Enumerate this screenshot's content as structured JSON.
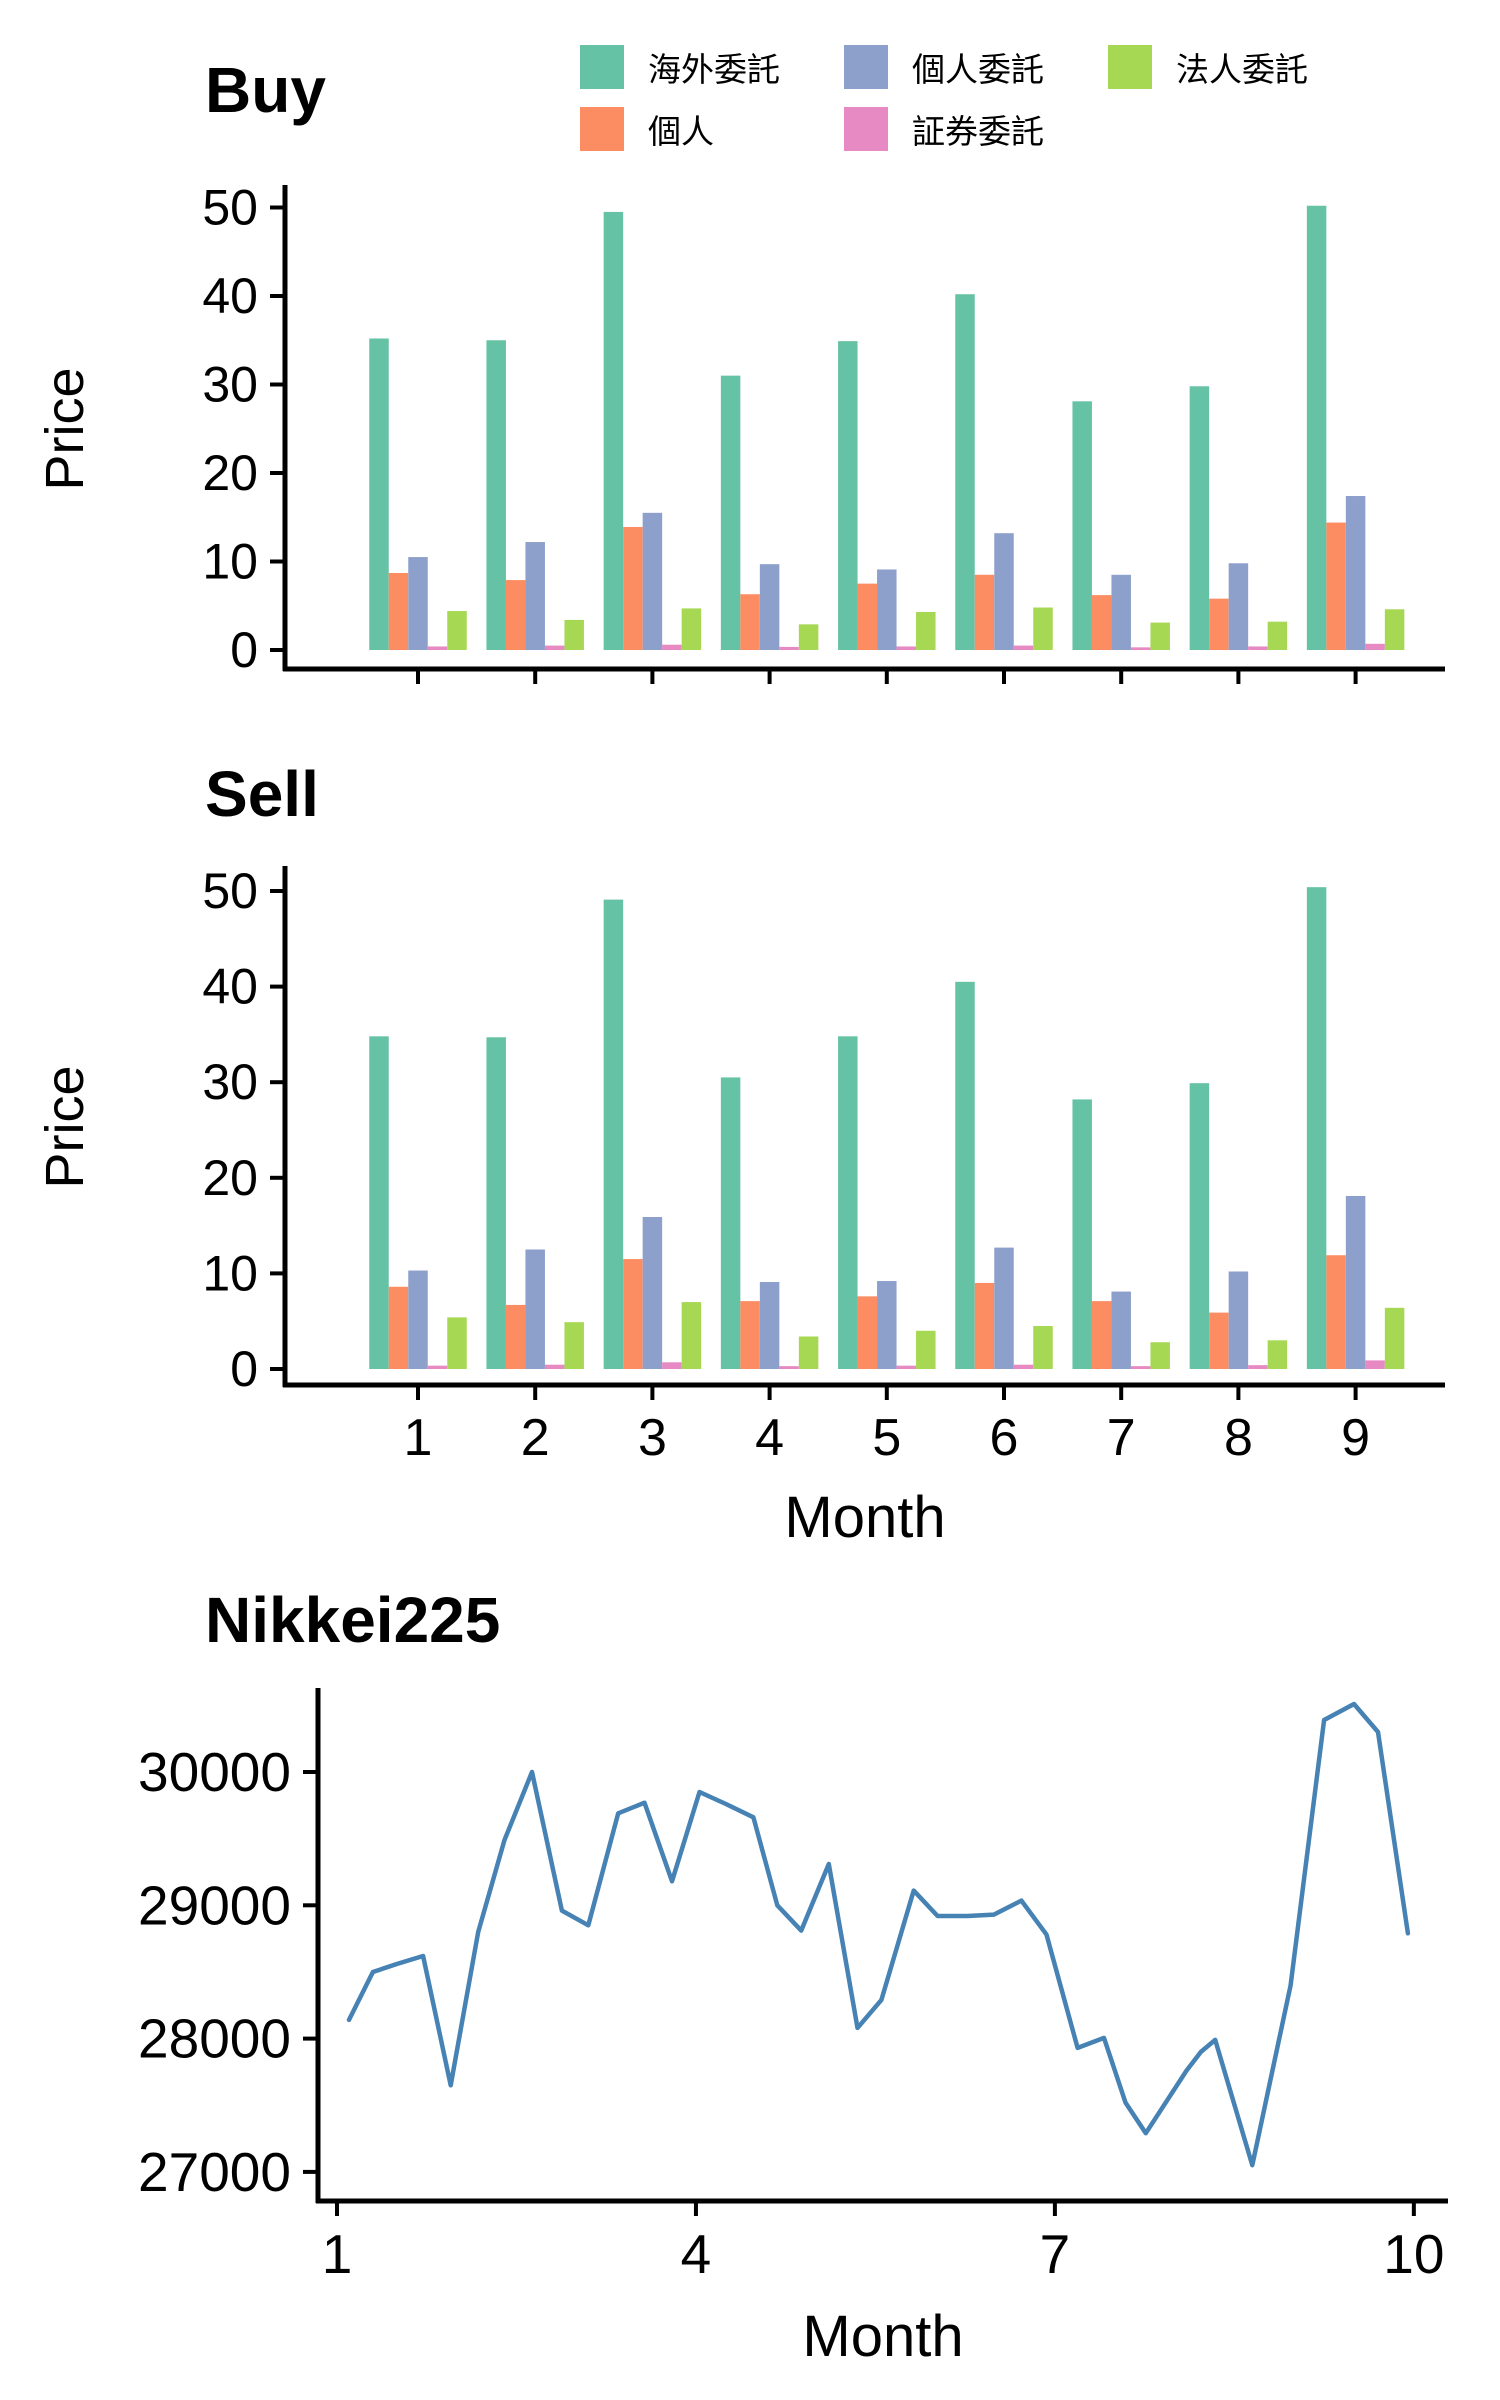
{
  "legend": {
    "items": [
      {
        "label": "海外委託",
        "color": "#66C2A5"
      },
      {
        "label": "個人",
        "color": "#FC8D62"
      },
      {
        "label": "個人委託",
        "color": "#8DA0CB"
      },
      {
        "label": "証券委託",
        "color": "#E78AC3"
      },
      {
        "label": "法人委託",
        "color": "#A6D854"
      }
    ]
  },
  "chart_data": [
    {
      "id": "buy",
      "type": "bar",
      "title": "Buy",
      "ylabel": "Price",
      "xlabel": "",
      "show_x_tick_labels": false,
      "categories": [
        "1",
        "2",
        "3",
        "4",
        "5",
        "6",
        "7",
        "8",
        "9"
      ],
      "yticks": [
        0,
        10,
        20,
        30,
        40,
        50
      ],
      "ylim": [
        0,
        52.5
      ],
      "grid": "off",
      "series": [
        {
          "name": "海外委託",
          "color": "#66C2A5",
          "values": [
            35.2,
            35.0,
            49.5,
            31.0,
            34.9,
            40.2,
            28.1,
            29.8,
            50.2
          ]
        },
        {
          "name": "個人",
          "color": "#FC8D62",
          "values": [
            8.7,
            7.9,
            13.9,
            6.3,
            7.5,
            8.5,
            6.2,
            5.8,
            14.4
          ]
        },
        {
          "name": "個人委託",
          "color": "#8DA0CB",
          "values": [
            10.5,
            12.2,
            15.5,
            9.7,
            9.1,
            13.2,
            8.5,
            9.8,
            17.4
          ]
        },
        {
          "name": "証券委託",
          "color": "#E78AC3",
          "values": [
            0.4,
            0.5,
            0.6,
            0.35,
            0.4,
            0.5,
            0.3,
            0.4,
            0.7
          ]
        },
        {
          "name": "法人委託",
          "color": "#A6D854",
          "values": [
            4.4,
            3.4,
            4.7,
            2.9,
            4.3,
            4.8,
            3.1,
            3.2,
            4.6
          ]
        }
      ]
    },
    {
      "id": "sell",
      "type": "bar",
      "title": "Sell",
      "ylabel": "Price",
      "xlabel": "Month",
      "show_x_tick_labels": true,
      "categories": [
        "1",
        "2",
        "3",
        "4",
        "5",
        "6",
        "7",
        "8",
        "9"
      ],
      "yticks": [
        0,
        10,
        20,
        30,
        40,
        50
      ],
      "ylim": [
        0,
        52.5
      ],
      "grid": "off",
      "series": [
        {
          "name": "海外委託",
          "color": "#66C2A5",
          "values": [
            34.8,
            34.7,
            49.1,
            30.5,
            34.8,
            40.5,
            28.2,
            29.9,
            50.4
          ]
        },
        {
          "name": "個人",
          "color": "#FC8D62",
          "values": [
            8.6,
            6.7,
            11.5,
            7.1,
            7.6,
            9.0,
            7.1,
            5.9,
            11.9
          ]
        },
        {
          "name": "個人委託",
          "color": "#8DA0CB",
          "values": [
            10.3,
            12.5,
            15.9,
            9.1,
            9.2,
            12.7,
            8.1,
            10.2,
            18.1
          ]
        },
        {
          "name": "証券委託",
          "color": "#E78AC3",
          "values": [
            0.35,
            0.45,
            0.7,
            0.3,
            0.35,
            0.45,
            0.3,
            0.4,
            0.9
          ]
        },
        {
          "name": "法人委託",
          "color": "#A6D854",
          "values": [
            5.4,
            4.9,
            7.0,
            3.4,
            4.0,
            4.5,
            2.8,
            3.0,
            6.4
          ]
        }
      ]
    },
    {
      "id": "nikkei",
      "type": "line",
      "title": "Nikkei225",
      "ylabel": "",
      "xlabel": "Month",
      "line_color": "#4682B4",
      "xticks": [
        1,
        4,
        7,
        10
      ],
      "yticks": [
        27000,
        28000,
        29000,
        30000
      ],
      "xlim": [
        0.85,
        10.3
      ],
      "ylim": [
        26800,
        30650
      ],
      "grid": "off",
      "x": [
        1.1,
        1.3,
        1.5,
        1.72,
        1.95,
        2.18,
        2.4,
        2.63,
        2.88,
        3.1,
        3.35,
        3.57,
        3.8,
        4.03,
        4.25,
        4.48,
        4.68,
        4.88,
        5.11,
        5.35,
        5.55,
        5.82,
        6.02,
        6.27,
        6.49,
        6.72,
        6.93,
        7.19,
        7.41,
        7.59,
        7.76,
        8.1,
        8.22,
        8.34,
        8.65,
        8.97,
        9.25,
        9.5,
        9.7,
        9.95
      ],
      "y": [
        28140,
        28500,
        28560,
        28620,
        27650,
        28800,
        29490,
        30000,
        28960,
        28850,
        29690,
        29770,
        29180,
        29850,
        29760,
        29660,
        29000,
        28810,
        29310,
        28080,
        28290,
        29110,
        28920,
        28920,
        28930,
        29035,
        28780,
        27930,
        28005,
        27520,
        27290,
        27760,
        27900,
        27990,
        27050,
        28400,
        30390,
        30510,
        30300,
        28790
      ]
    }
  ]
}
